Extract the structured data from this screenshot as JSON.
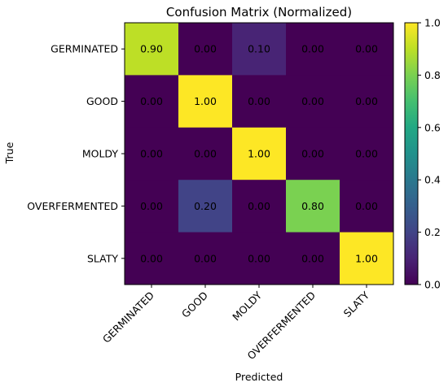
{
  "chart_data": {
    "type": "heatmap",
    "title": "Confusion Matrix (Normalized)",
    "xlabel": "Predicted",
    "ylabel": "True",
    "x_categories": [
      "GERMINATED",
      "GOOD",
      "MOLDY",
      "OVERFERMENTED",
      "SLATY"
    ],
    "y_categories": [
      "GERMINATED",
      "GOOD",
      "MOLDY",
      "OVERFERMENTED",
      "SLATY"
    ],
    "values": [
      [
        0.9,
        0.0,
        0.1,
        0.0,
        0.0
      ],
      [
        0.0,
        1.0,
        0.0,
        0.0,
        0.0
      ],
      [
        0.0,
        0.0,
        1.0,
        0.0,
        0.0
      ],
      [
        0.0,
        0.2,
        0.0,
        0.8,
        0.0
      ],
      [
        0.0,
        0.0,
        0.0,
        0.0,
        1.0
      ]
    ],
    "cell_labels": [
      [
        "0.90",
        "0.00",
        "0.10",
        "0.00",
        "0.00"
      ],
      [
        "0.00",
        "1.00",
        "0.00",
        "0.00",
        "0.00"
      ],
      [
        "0.00",
        "0.00",
        "1.00",
        "0.00",
        "0.00"
      ],
      [
        "0.00",
        "0.20",
        "0.00",
        "0.80",
        "0.00"
      ],
      [
        "0.00",
        "0.00",
        "0.00",
        "0.00",
        "1.00"
      ]
    ],
    "colorbar": {
      "range": [
        0.0,
        1.0
      ],
      "ticks": [
        "0.0",
        "0.2",
        "0.4",
        "0.6",
        "0.8",
        "1.0"
      ],
      "colormap": "viridis"
    }
  }
}
